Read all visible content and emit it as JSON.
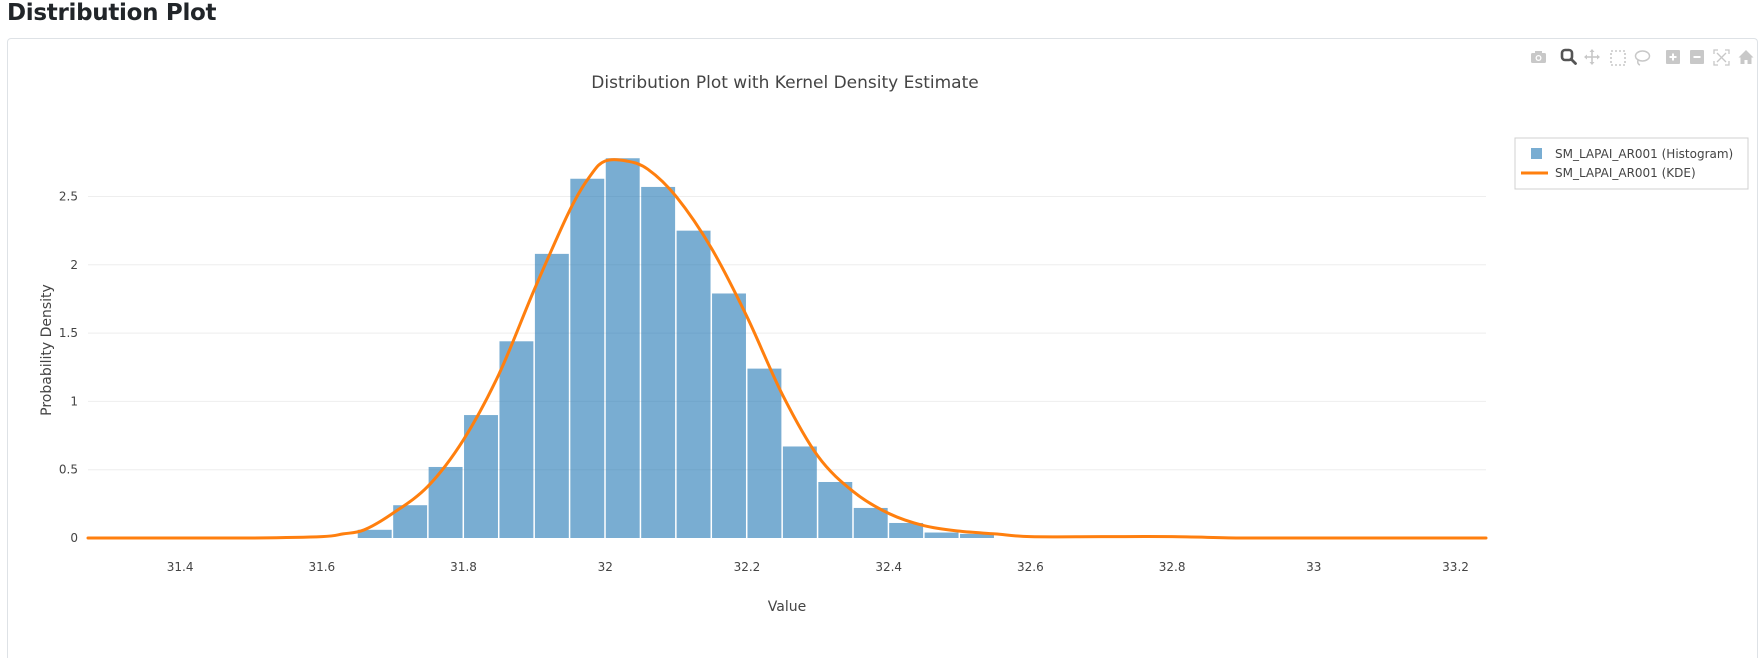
{
  "page": {
    "title": "Distribution Plot"
  },
  "modebar": {
    "buttons": [
      {
        "name": "camera-icon",
        "label": "Download plot as a png",
        "active": false
      },
      {
        "name": "zoom-icon",
        "label": "Zoom",
        "active": true
      },
      {
        "name": "pan-icon",
        "label": "Pan",
        "active": false
      },
      {
        "name": "box-select-icon",
        "label": "Box Select",
        "active": false
      },
      {
        "name": "lasso-select-icon",
        "label": "Lasso Select",
        "active": false
      },
      {
        "name": "zoom-in-icon",
        "label": "Zoom in",
        "active": false
      },
      {
        "name": "zoom-out-icon",
        "label": "Zoom out",
        "active": false
      },
      {
        "name": "autoscale-icon",
        "label": "Autoscale",
        "active": false
      },
      {
        "name": "home-icon",
        "label": "Reset axes",
        "active": false
      }
    ]
  },
  "colors": {
    "histogram": "#1f77b4",
    "histogram_opacity": 0.6,
    "kde": "#ff7f0e",
    "grid": "#eeeeee",
    "text": "#444444"
  },
  "chart_data": {
    "type": "bar",
    "title": "Distribution Plot with Kernel Density Estimate",
    "xlabel": "Value",
    "ylabel": "Probability Density",
    "xlim": [
      31.27,
      33.243
    ],
    "ylim": [
      0,
      3.06
    ],
    "grid": true,
    "legend_position": "top-right-outside",
    "x_ticks": [
      31.4,
      31.6,
      31.8,
      32,
      32.2,
      32.4,
      32.6,
      32.8,
      33,
      33.2
    ],
    "x_tick_labels": [
      "31.4",
      "31.6",
      "31.8",
      "32",
      "32.2",
      "32.4",
      "32.6",
      "32.8",
      "33",
      "33.2"
    ],
    "y_ticks": [
      0,
      0.5,
      1,
      1.5,
      2,
      2.5
    ],
    "y_tick_labels": [
      "0",
      "0.5",
      "1",
      "1.5",
      "2",
      "2.5"
    ],
    "bin_width": 0.05,
    "series": [
      {
        "name": "SM_LAPAI_AR001 (Histogram)",
        "kind": "histogram",
        "bin_starts": [
          31.65,
          31.7,
          31.75,
          31.8,
          31.85,
          31.9,
          31.95,
          32.0,
          32.05,
          32.1,
          32.15,
          32.2,
          32.25,
          32.3,
          32.35,
          32.4,
          32.45,
          32.5
        ],
        "values": [
          0.06,
          0.24,
          0.52,
          0.9,
          1.44,
          2.08,
          2.63,
          2.78,
          2.57,
          2.25,
          1.79,
          1.24,
          0.67,
          0.41,
          0.22,
          0.11,
          0.04,
          0.03
        ]
      },
      {
        "name": "SM_LAPAI_AR001 (KDE)",
        "kind": "line",
        "x": [
          31.27,
          31.4,
          31.5,
          31.6,
          31.63,
          31.66,
          31.7,
          31.75,
          31.8,
          31.85,
          31.9,
          31.95,
          31.98,
          32.0,
          32.03,
          32.06,
          32.1,
          32.15,
          32.2,
          32.25,
          32.3,
          32.35,
          32.4,
          32.45,
          32.5,
          32.55,
          32.6,
          32.7,
          32.8,
          32.9,
          33.0,
          33.243
        ],
        "values": [
          0.0,
          0.0,
          0.0,
          0.01,
          0.03,
          0.06,
          0.18,
          0.38,
          0.72,
          1.2,
          1.82,
          2.4,
          2.66,
          2.76,
          2.76,
          2.7,
          2.5,
          2.12,
          1.62,
          1.05,
          0.6,
          0.34,
          0.18,
          0.09,
          0.05,
          0.03,
          0.01,
          0.01,
          0.01,
          0.0,
          0.0,
          0.0
        ]
      }
    ]
  }
}
